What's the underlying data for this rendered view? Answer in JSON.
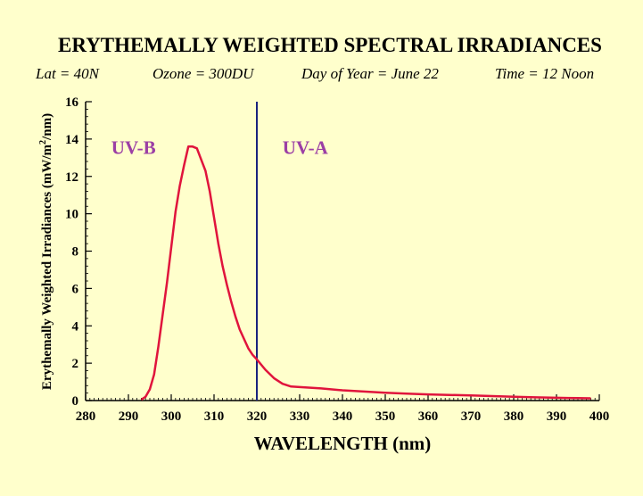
{
  "chart_data": {
    "type": "line",
    "title": "ERYTHEMALLY WEIGHTED SPECTRAL IRRADIANCES",
    "subtitle": {
      "lat": "Lat = 40N",
      "ozone": "Ozone = 300DU",
      "day": "Day of Year = June 22",
      "time": "Time = 12 Noon"
    },
    "xlabel": "WAVELENGTH (nm)",
    "ylabel_main": "Erythemally Weighted Irradiances (mW/m",
    "ylabel_sup": "2",
    "ylabel_end": "/nm)",
    "xlim": [
      280,
      400
    ],
    "ylim": [
      0,
      16
    ],
    "x_ticks": [
      280,
      290,
      300,
      310,
      320,
      330,
      340,
      350,
      360,
      370,
      380,
      390,
      400
    ],
    "x_tick_labels": [
      "280",
      "290",
      "300",
      "310",
      "320",
      "330",
      "340",
      "350",
      "360",
      "370",
      "380",
      "390",
      "400"
    ],
    "y_ticks": [
      0,
      2,
      4,
      6,
      8,
      10,
      12,
      14,
      16
    ],
    "y_tick_labels": [
      "0",
      "2",
      "4",
      "6",
      "8",
      "10",
      "12",
      "14",
      "16"
    ],
    "divider_x": 320,
    "region_labels": [
      {
        "text": "UV-B",
        "x": 286,
        "y": 13.2
      },
      {
        "text": "UV-A",
        "x": 326,
        "y": 13.2
      }
    ],
    "series": [
      {
        "color": "#e0143c",
        "x": [
          293,
          294,
          295,
          296,
          297,
          298,
          299,
          300,
          301,
          302,
          303,
          304,
          305,
          306,
          307,
          308,
          309,
          310,
          311,
          312,
          313,
          314,
          315,
          316,
          317,
          318,
          319,
          320,
          322,
          324,
          326,
          328,
          330,
          335,
          340,
          345,
          350,
          355,
          360,
          365,
          370,
          375,
          380,
          385,
          390,
          395,
          398
        ],
        "y": [
          0.05,
          0.2,
          0.6,
          1.4,
          2.9,
          4.6,
          6.3,
          8.2,
          10.1,
          11.5,
          12.6,
          13.6,
          13.6,
          13.5,
          12.9,
          12.3,
          11.2,
          9.8,
          8.4,
          7.2,
          6.2,
          5.3,
          4.5,
          3.8,
          3.3,
          2.8,
          2.45,
          2.2,
          1.65,
          1.2,
          0.9,
          0.75,
          0.72,
          0.65,
          0.55,
          0.48,
          0.42,
          0.37,
          0.33,
          0.3,
          0.27,
          0.24,
          0.2,
          0.17,
          0.15,
          0.13,
          0.12
        ]
      }
    ],
    "divider_color": "#1a237e",
    "background": "#ffffcc"
  }
}
